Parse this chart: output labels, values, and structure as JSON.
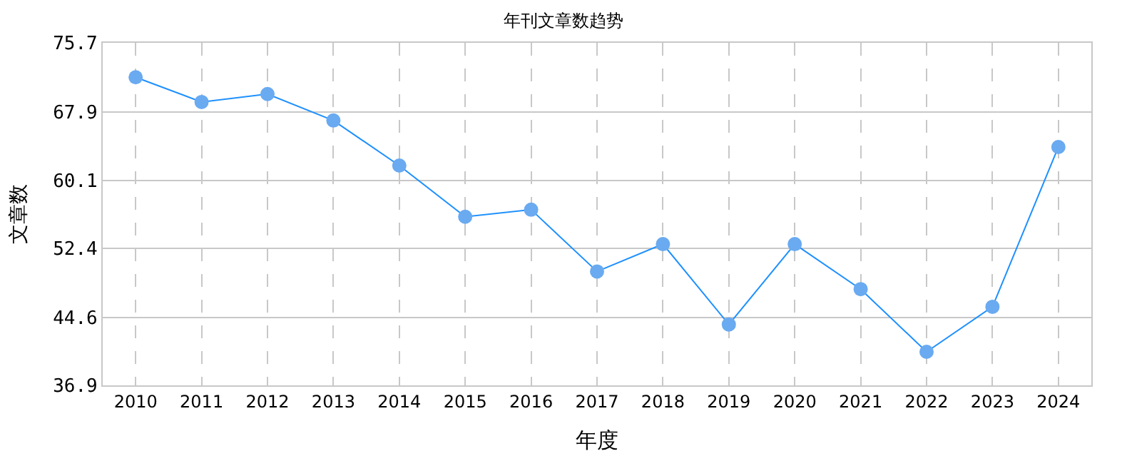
{
  "chart_data": {
    "type": "line",
    "title": "年刊文章数趋势",
    "xlabel": "年度",
    "ylabel": "文章数",
    "categories": [
      "2010",
      "2011",
      "2012",
      "2013",
      "2014",
      "2015",
      "2016",
      "2017",
      "2018",
      "2019",
      "2020",
      "2021",
      "2022",
      "2023",
      "2024"
    ],
    "series": [
      {
        "color": "#1e90ff",
        "values": [
          71.8,
          69.0,
          69.9,
          66.9,
          61.8,
          56.0,
          56.8,
          49.8,
          52.9,
          43.8,
          52.9,
          47.8,
          40.7,
          45.8,
          63.9
        ]
      }
    ],
    "ylim": [
      36.9,
      75.7
    ],
    "yticks": [
      36.9,
      44.6,
      52.4,
      60.1,
      67.9,
      75.7
    ],
    "grid": true,
    "marker": "circle",
    "line_style": "solid"
  }
}
